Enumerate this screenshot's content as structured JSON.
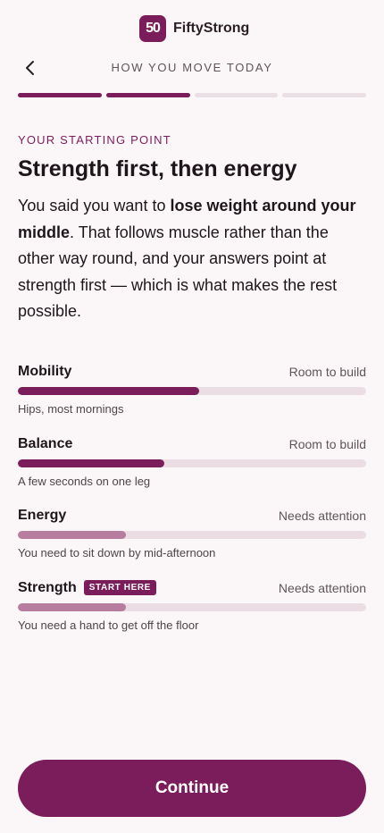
{
  "header": {
    "logo_mark": "50",
    "brand": "FiftyStrong",
    "nav_title": "HOW YOU MOVE TODAY"
  },
  "progress": {
    "steps": 4,
    "completed": 2
  },
  "eyebrow": "YOUR STARTING POINT",
  "heading": "Strength first, then energy",
  "paragraph": [
    "You said you want to ",
    "lose weight around your middle",
    ". That follows muscle rather than the other way round, and your answers point at strength first — which is what makes the rest possible."
  ],
  "rows": [
    {
      "label": "Mobility",
      "status": "Room to build",
      "caption": "Hips, most mornings",
      "level": 0.52,
      "color": "#7b1d5a"
    },
    {
      "label": "Balance",
      "status": "Room to build",
      "caption": "A few seconds on one leg",
      "level": 0.42,
      "color": "#7b1d5a"
    },
    {
      "label": "Energy",
      "status": "Needs attention",
      "caption": "You need to sit down by mid-afternoon",
      "level": 0.31,
      "color": "#b77d9f"
    },
    {
      "label": "Strength",
      "badge": "START HERE",
      "status": "Needs attention",
      "caption": "You need a hand to get off the floor",
      "level": 0.31,
      "color": "#b77d9f"
    }
  ],
  "button": "Continue"
}
